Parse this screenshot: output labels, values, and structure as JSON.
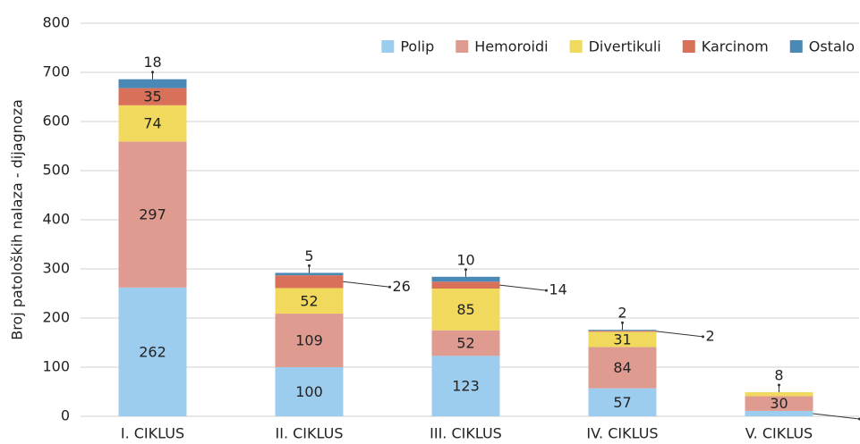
{
  "chart_data": {
    "type": "stacked_bar",
    "y_label": "Broj patoloških nalaza - dijagnoza",
    "categories": [
      "I. CIKLUS",
      "II. CIKLUS",
      "III. CIKLUS",
      "IV. CIKLUS",
      "V. CIKLUS"
    ],
    "series": [
      {
        "name": "Polip",
        "color": "#9dcdee",
        "values": [
          262,
          100,
          123,
          57,
          11
        ]
      },
      {
        "name": "Hemoroidi",
        "color": "#e09b90",
        "values": [
          297,
          109,
          52,
          84,
          30
        ]
      },
      {
        "name": "Divertikuli",
        "color": "#f0d95c",
        "values": [
          74,
          52,
          85,
          31,
          8
        ]
      },
      {
        "name": "Karcinom",
        "color": "#d8705a",
        "values": [
          35,
          26,
          14,
          2,
          0
        ]
      },
      {
        "name": "Ostalo",
        "color": "#4a88b6",
        "values": [
          18,
          5,
          10,
          2,
          0
        ]
      }
    ],
    "ylim": [
      0,
      800
    ],
    "yticks": [
      0,
      100,
      200,
      300,
      400,
      500,
      600,
      700,
      800
    ],
    "grid": true,
    "legend": "top-right"
  }
}
